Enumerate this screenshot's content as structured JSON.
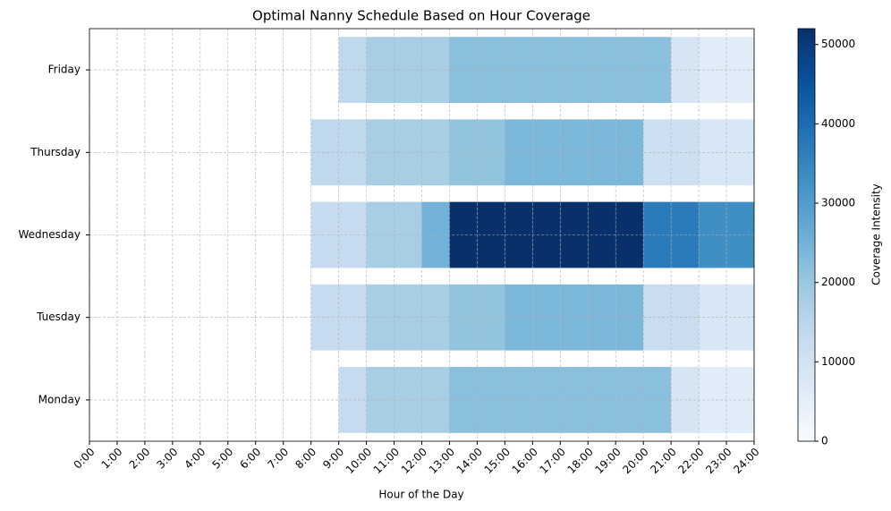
{
  "chart_data": {
    "type": "heatmap",
    "title": "Optimal Nanny Schedule Based on Hour Coverage",
    "xlabel": "Hour of the Day",
    "categories": [
      "Monday",
      "Tuesday",
      "Wednesday",
      "Thursday",
      "Friday"
    ],
    "x": [
      0,
      1,
      2,
      3,
      4,
      5,
      6,
      7,
      8,
      9,
      10,
      11,
      12,
      13,
      14,
      15,
      16,
      17,
      18,
      19,
      20,
      21,
      22,
      23
    ],
    "values": [
      [
        null,
        null,
        null,
        null,
        null,
        null,
        null,
        null,
        null,
        13000,
        18000,
        18000,
        18000,
        22000,
        22000,
        22000,
        22000,
        22000,
        22000,
        22000,
        22000,
        9000,
        6000,
        6000
      ],
      [
        null,
        null,
        null,
        null,
        null,
        null,
        null,
        null,
        13000,
        13000,
        18000,
        18000,
        18000,
        21000,
        21000,
        24000,
        24000,
        24000,
        24000,
        24000,
        12000,
        12000,
        8000,
        8000
      ],
      [
        null,
        null,
        null,
        null,
        null,
        null,
        null,
        null,
        13000,
        13000,
        18000,
        18000,
        25000,
        52000,
        52000,
        52000,
        52000,
        52000,
        52000,
        52000,
        37000,
        37000,
        33000,
        33000
      ],
      [
        null,
        null,
        null,
        null,
        null,
        null,
        null,
        null,
        14000,
        14000,
        18000,
        18000,
        18000,
        21000,
        21000,
        24000,
        24000,
        24000,
        24000,
        24000,
        11000,
        11000,
        8000,
        8000
      ],
      [
        null,
        null,
        null,
        null,
        null,
        null,
        null,
        null,
        null,
        14000,
        18000,
        18000,
        18000,
        22000,
        22000,
        22000,
        22000,
        22000,
        22000,
        22000,
        22000,
        9000,
        6000,
        6000
      ]
    ],
    "xlim": [
      0,
      24
    ],
    "xticks": [
      {
        "value": 0,
        "label": "0:00"
      },
      {
        "value": 1,
        "label": "1:00"
      },
      {
        "value": 2,
        "label": "2:00"
      },
      {
        "value": 3,
        "label": "3:00"
      },
      {
        "value": 4,
        "label": "4:00"
      },
      {
        "value": 5,
        "label": "5:00"
      },
      {
        "value": 6,
        "label": "6:00"
      },
      {
        "value": 7,
        "label": "7:00"
      },
      {
        "value": 8,
        "label": "8:00"
      },
      {
        "value": 9,
        "label": "9:00"
      },
      {
        "value": 10,
        "label": "10:00"
      },
      {
        "value": 11,
        "label": "11:00"
      },
      {
        "value": 12,
        "label": "12:00"
      },
      {
        "value": 13,
        "label": "13:00"
      },
      {
        "value": 14,
        "label": "14:00"
      },
      {
        "value": 15,
        "label": "15:00"
      },
      {
        "value": 16,
        "label": "16:00"
      },
      {
        "value": 17,
        "label": "17:00"
      },
      {
        "value": 18,
        "label": "18:00"
      },
      {
        "value": 19,
        "label": "19:00"
      },
      {
        "value": 20,
        "label": "20:00"
      },
      {
        "value": 21,
        "label": "21:00"
      },
      {
        "value": 22,
        "label": "22:00"
      },
      {
        "value": 23,
        "label": "23:00"
      },
      {
        "value": 24,
        "label": "24:00"
      }
    ],
    "grid": true,
    "colormap": "Blues",
    "colorbar": {
      "label": "Coverage Intensity",
      "lim": [
        0,
        52000
      ],
      "ticks": [
        0,
        10000,
        20000,
        30000,
        40000,
        50000
      ]
    }
  }
}
